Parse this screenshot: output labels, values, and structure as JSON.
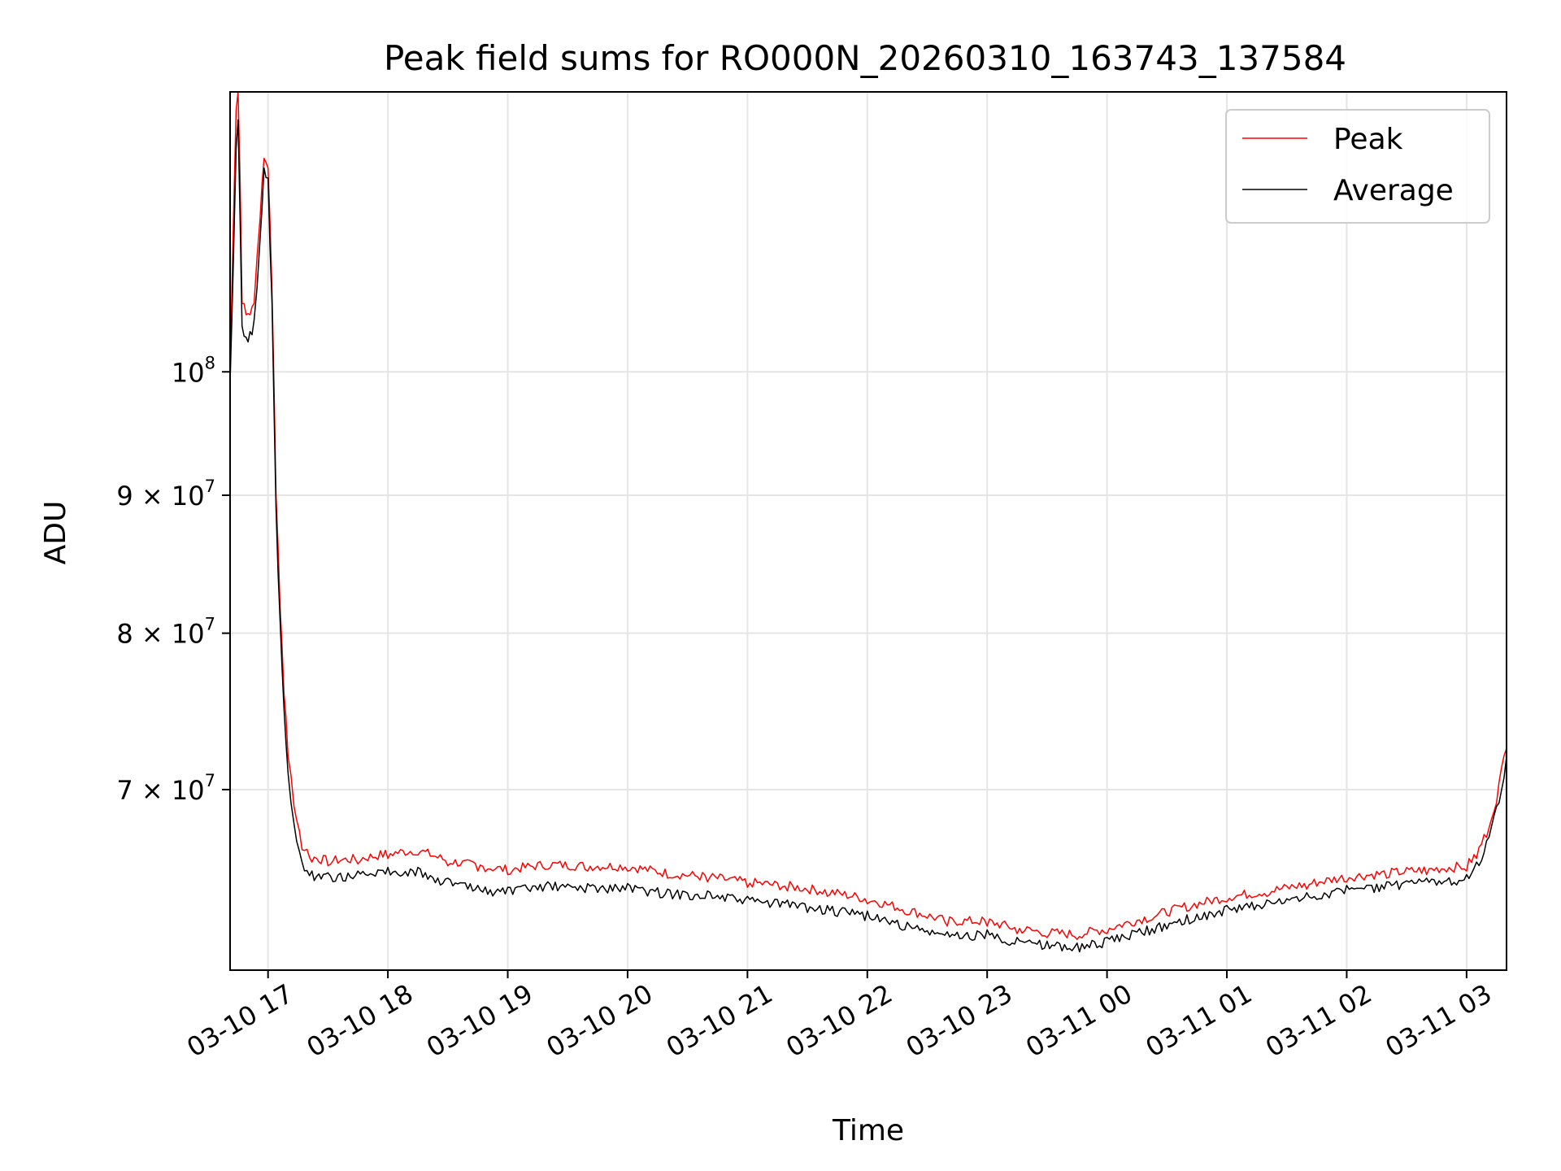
{
  "chart_data": {
    "type": "line",
    "title": "Peak field sums for RO000N_20260310_163743_137584",
    "xlabel": "Time",
    "ylabel": "ADU",
    "yscale": "log",
    "grid": true,
    "legend_position": "top-right",
    "xlim": [
      "2026-03-10 16:41",
      "2026-03-11 03:20"
    ],
    "ylim": [
      60000000,
      127000000
    ],
    "x_ticks": [
      {
        "label": "03-10 17",
        "t": "2026-03-10 17:00"
      },
      {
        "label": "03-10 18",
        "t": "2026-03-10 18:00"
      },
      {
        "label": "03-10 19",
        "t": "2026-03-10 19:00"
      },
      {
        "label": "03-10 20",
        "t": "2026-03-10 20:00"
      },
      {
        "label": "03-10 21",
        "t": "2026-03-10 21:00"
      },
      {
        "label": "03-10 22",
        "t": "2026-03-10 22:00"
      },
      {
        "label": "03-10 23",
        "t": "2026-03-10 23:00"
      },
      {
        "label": "03-11 00",
        "t": "2026-03-11 00:00"
      },
      {
        "label": "03-11 01",
        "t": "2026-03-11 01:00"
      },
      {
        "label": "03-11 02",
        "t": "2026-03-11 02:00"
      },
      {
        "label": "03-11 03",
        "t": "2026-03-11 03:00"
      }
    ],
    "y_ticks": [
      {
        "value": 70000000,
        "mant": "7",
        "base": "10",
        "exp": "7"
      },
      {
        "value": 80000000,
        "mant": "8",
        "base": "10",
        "exp": "7"
      },
      {
        "value": 90000000,
        "mant": "9",
        "base": "10",
        "exp": "7"
      },
      {
        "value": 100000000,
        "mant": "",
        "base": "10",
        "exp": "8"
      }
    ],
    "series": [
      {
        "name": "Peak",
        "color": "#ff0000",
        "x": [
          "2026-03-10 16:41",
          "2026-03-10 16:44",
          "2026-03-10 16:45",
          "2026-03-10 16:46",
          "2026-03-10 16:47",
          "2026-03-10 16:49",
          "2026-03-10 16:51",
          "2026-03-10 16:53",
          "2026-03-10 16:56",
          "2026-03-10 16:58",
          "2026-03-10 17:00",
          "2026-03-10 17:02",
          "2026-03-10 17:04",
          "2026-03-10 17:06",
          "2026-03-10 17:08",
          "2026-03-10 17:10",
          "2026-03-10 17:13",
          "2026-03-10 17:17",
          "2026-03-10 17:22",
          "2026-03-10 17:30",
          "2026-03-10 17:45",
          "2026-03-10 18:00",
          "2026-03-10 18:15",
          "2026-03-10 18:30",
          "2026-03-10 18:45",
          "2026-03-10 19:00",
          "2026-03-10 19:20",
          "2026-03-10 19:40",
          "2026-03-10 20:00",
          "2026-03-10 20:20",
          "2026-03-10 20:40",
          "2026-03-10 21:00",
          "2026-03-10 21:20",
          "2026-03-10 21:40",
          "2026-03-10 22:00",
          "2026-03-10 22:20",
          "2026-03-10 22:40",
          "2026-03-10 23:00",
          "2026-03-10 23:15",
          "2026-03-10 23:30",
          "2026-03-10 23:45",
          "2026-03-11 00:00",
          "2026-03-11 00:20",
          "2026-03-11 00:40",
          "2026-03-11 01:00",
          "2026-03-11 01:20",
          "2026-03-11 01:40",
          "2026-03-11 02:00",
          "2026-03-11 02:20",
          "2026-03-11 02:40",
          "2026-03-11 03:00",
          "2026-03-11 03:05",
          "2026-03-11 03:10",
          "2026-03-11 03:15",
          "2026-03-11 03:20"
        ],
        "values": [
          100000000,
          125000000,
          127000000,
          118000000,
          106000000,
          105000000,
          105000000,
          106000000,
          114000000,
          120000000,
          119000000,
          107000000,
          90000000,
          82000000,
          76000000,
          72000000,
          69000000,
          66500000,
          65800000,
          65600000,
          65700000,
          66000000,
          66200000,
          65600000,
          65300000,
          65100000,
          65400000,
          65300000,
          65300000,
          64900000,
          64700000,
          64400000,
          64200000,
          63900000,
          63500000,
          62900000,
          62300000,
          62300000,
          61900000,
          61700000,
          61600000,
          61900000,
          62500000,
          63100000,
          63600000,
          63900000,
          64300000,
          64700000,
          64900000,
          65100000,
          65300000,
          66000000,
          67200000,
          69200000,
          72500000
        ]
      },
      {
        "name": "Average",
        "color": "#000000",
        "x": [
          "2026-03-10 16:41",
          "2026-03-10 16:44",
          "2026-03-10 16:45",
          "2026-03-10 16:46",
          "2026-03-10 16:47",
          "2026-03-10 16:49",
          "2026-03-10 16:51",
          "2026-03-10 16:53",
          "2026-03-10 16:56",
          "2026-03-10 16:58",
          "2026-03-10 17:00",
          "2026-03-10 17:02",
          "2026-03-10 17:04",
          "2026-03-10 17:06",
          "2026-03-10 17:08",
          "2026-03-10 17:10",
          "2026-03-10 17:13",
          "2026-03-10 17:17",
          "2026-03-10 17:22",
          "2026-03-10 17:30",
          "2026-03-10 17:45",
          "2026-03-10 18:00",
          "2026-03-10 18:15",
          "2026-03-10 18:30",
          "2026-03-10 18:45",
          "2026-03-10 19:00",
          "2026-03-10 19:20",
          "2026-03-10 19:40",
          "2026-03-10 20:00",
          "2026-03-10 20:20",
          "2026-03-10 20:40",
          "2026-03-10 21:00",
          "2026-03-10 21:20",
          "2026-03-10 21:40",
          "2026-03-10 22:00",
          "2026-03-10 22:20",
          "2026-03-10 22:40",
          "2026-03-10 23:00",
          "2026-03-10 23:15",
          "2026-03-10 23:30",
          "2026-03-10 23:45",
          "2026-03-11 00:00",
          "2026-03-11 00:20",
          "2026-03-11 00:40",
          "2026-03-11 01:00",
          "2026-03-11 01:20",
          "2026-03-11 01:40",
          "2026-03-11 02:00",
          "2026-03-11 02:20",
          "2026-03-11 02:40",
          "2026-03-11 03:00",
          "2026-03-11 03:05",
          "2026-03-11 03:10",
          "2026-03-11 03:15",
          "2026-03-11 03:20"
        ],
        "values": [
          99000000,
          121000000,
          124000000,
          114000000,
          104000000,
          103000000,
          103500000,
          104500000,
          112000000,
          119000000,
          118000000,
          106000000,
          89000000,
          81000000,
          75000000,
          71000000,
          68000000,
          65800000,
          65300000,
          65200000,
          65300000,
          65500000,
          65500000,
          64900000,
          64500000,
          64400000,
          64700000,
          64600000,
          64600000,
          64300000,
          64200000,
          63900000,
          63700000,
          63400000,
          63100000,
          62500000,
          62000000,
          62100000,
          61700000,
          61500000,
          61400000,
          61700000,
          62300000,
          62900000,
          63400000,
          63700000,
          64100000,
          64500000,
          64700000,
          64900000,
          65100000,
          65800000,
          67000000,
          69000000,
          72000000
        ]
      }
    ]
  }
}
